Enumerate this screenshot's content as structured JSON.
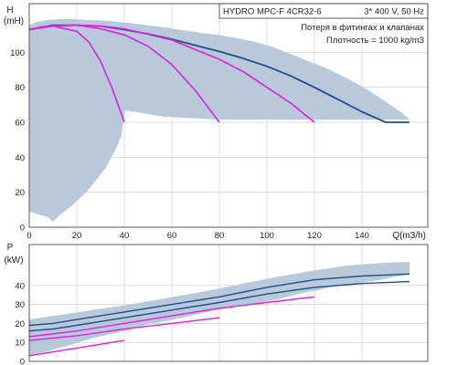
{
  "chart_data": [
    {
      "type": "line",
      "title": "HYDRO MPC-F 4CR32-6",
      "subtitle": "3* 400 V, 50 Hz",
      "notes": [
        "Потеря в фитингах и клапанах",
        "Плотность = 1000 kg/m3"
      ],
      "ylabel": "H",
      "yunit": "(mH)",
      "xlabel": "Q(m3/h)",
      "xlim": [
        0,
        160
      ],
      "ylim": [
        0,
        120
      ],
      "xticks": [
        "0",
        "20",
        "40",
        "60",
        "80",
        "100",
        "120",
        "140"
      ],
      "yticks": [
        "0",
        "20",
        "40",
        "60",
        "80",
        "100"
      ],
      "grid": true,
      "colors": {
        "max_curve": "#1f4e8c",
        "duty_curves": "#e020e0",
        "envelope": "#b8c9d9",
        "grid": "#c8c8c8"
      },
      "series": [
        {
          "x": [
            0,
            10,
            20,
            30,
            40,
            50,
            60,
            70,
            80,
            90,
            100,
            110,
            120,
            130,
            140,
            150,
            160
          ],
          "y": [
            113,
            115.5,
            115.5,
            115,
            113,
            110.5,
            107.5,
            104,
            100.5,
            96.5,
            92,
            86.5,
            80,
            73,
            66,
            60,
            60
          ]
        },
        {
          "x": [
            0,
            5,
            10,
            20,
            25,
            30,
            35,
            40
          ],
          "y": [
            113,
            114.5,
            115,
            112,
            106,
            95,
            79,
            60
          ]
        },
        {
          "x": [
            0,
            10,
            20,
            30,
            40,
            50,
            60,
            70,
            80
          ],
          "y": [
            113,
            115,
            115.5,
            113.5,
            110,
            103.5,
            93,
            78,
            60
          ]
        },
        {
          "x": [
            0,
            10,
            20,
            30,
            40,
            60,
            80,
            90,
            100,
            110,
            120
          ],
          "y": [
            113,
            115,
            115.5,
            115,
            113.5,
            107,
            96,
            89,
            80,
            71,
            60
          ]
        }
      ]
    },
    {
      "type": "line",
      "ylabel": "P",
      "yunit": "(kW)",
      "xlim": [
        0,
        160
      ],
      "ylim": [
        0,
        50
      ],
      "yticks": [
        "0",
        "10",
        "20",
        "30",
        "40"
      ],
      "grid": true,
      "series": [
        {
          "x": [
            0,
            10,
            20,
            40,
            60,
            80,
            100,
            120,
            140,
            160
          ],
          "y": [
            19,
            20,
            22,
            26,
            30,
            34,
            39,
            43,
            45,
            46
          ]
        },
        {
          "x": [
            0,
            10,
            20,
            40,
            60,
            80,
            100,
            120,
            140,
            160
          ],
          "y": [
            16,
            17,
            19,
            23,
            27,
            31,
            35.5,
            39,
            41,
            42
          ]
        },
        {
          "x": [
            0,
            20,
            40,
            60,
            80,
            100,
            120
          ],
          "y": [
            13,
            16,
            20,
            24,
            28,
            31,
            34
          ]
        },
        {
          "x": [
            0,
            20,
            40,
            60,
            80
          ],
          "y": [
            11,
            13.5,
            17,
            20,
            23
          ]
        },
        {
          "x": [
            0,
            20,
            40
          ],
          "y": [
            3,
            7,
            11
          ]
        }
      ]
    }
  ]
}
